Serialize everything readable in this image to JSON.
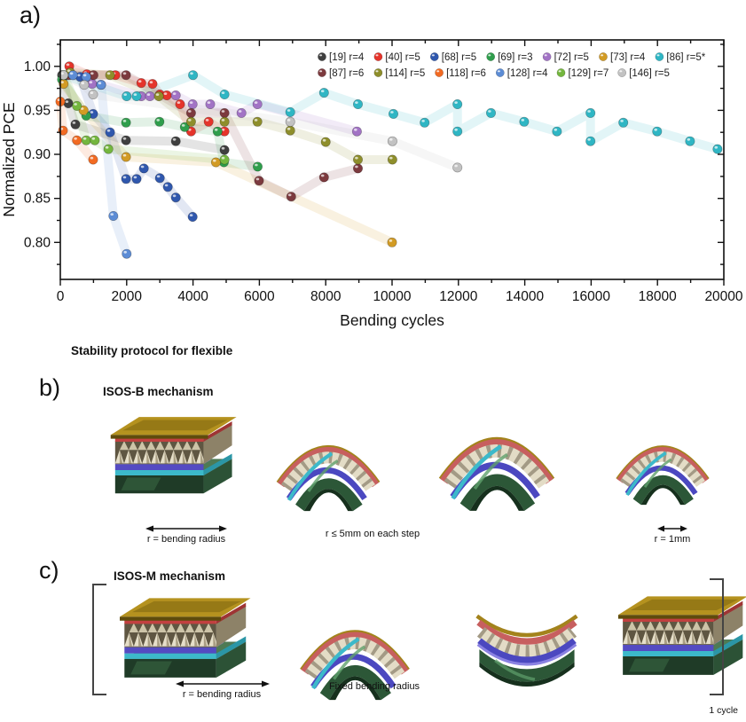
{
  "panel_a": {
    "label": "a)"
  },
  "chart_data": {
    "type": "scatter",
    "title": "",
    "xlabel": "Bending cycles",
    "ylabel": "Normalized PCE",
    "xlim": [
      0,
      20000
    ],
    "ylim": [
      0.758,
      1.03
    ],
    "x_major_ticks": [
      0,
      2000,
      4000,
      6000,
      8000,
      10000,
      12000,
      14000,
      16000,
      18000,
      20000
    ],
    "x_minor_step": 1000,
    "y_major_ticks": [
      0.8,
      0.85,
      0.9,
      0.95,
      1.0
    ],
    "y_minor_step": 0.025,
    "grid": false,
    "legend_position": "top-inside",
    "legend_rows": [
      7,
      6
    ],
    "series": [
      {
        "name": "[19] r=4",
        "color": "#3f3f3f",
        "points": [
          [
            50,
            0.99
          ],
          [
            240,
            0.958
          ],
          [
            455,
            0.934
          ],
          [
            1980,
            0.916
          ],
          [
            3480,
            0.915
          ],
          [
            4950,
            0.905
          ]
        ]
      },
      {
        "name": "[40] r=5",
        "color": "#e5342b",
        "points": [
          [
            270,
            1.0
          ],
          [
            800,
            0.991
          ],
          [
            1660,
            0.99
          ],
          [
            2440,
            0.981
          ],
          [
            2780,
            0.98
          ],
          [
            3000,
            0.968
          ],
          [
            3210,
            0.967
          ],
          [
            3610,
            0.957
          ],
          [
            3940,
            0.926
          ],
          [
            4470,
            0.937
          ],
          [
            4950,
            0.926
          ]
        ]
      },
      {
        "name": "[68] r=5",
        "color": "#2f57ad",
        "points": [
          [
            100,
            0.99
          ],
          [
            600,
            0.988
          ],
          [
            990,
            0.946
          ],
          [
            1500,
            0.925
          ],
          [
            1980,
            0.872
          ],
          [
            2300,
            0.872
          ],
          [
            2520,
            0.884
          ],
          [
            3000,
            0.873
          ],
          [
            3240,
            0.863
          ],
          [
            3480,
            0.851
          ],
          [
            3990,
            0.829
          ]
        ]
      },
      {
        "name": "[69] r=3",
        "color": "#2f9e4c",
        "points": [
          [
            50,
            0.985
          ],
          [
            780,
            0.944
          ],
          [
            1980,
            0.936
          ],
          [
            2990,
            0.937
          ],
          [
            3750,
            0.931
          ],
          [
            4740,
            0.926
          ],
          [
            4930,
            0.891
          ],
          [
            5950,
            0.886
          ]
        ]
      },
      {
        "name": "[72] r=5",
        "color": "#a273c5",
        "points": [
          [
            960,
            0.98
          ],
          [
            1230,
            0.979
          ],
          [
            2440,
            0.966
          ],
          [
            2700,
            0.966
          ],
          [
            3480,
            0.967
          ],
          [
            3990,
            0.957
          ],
          [
            4520,
            0.957
          ],
          [
            5460,
            0.947
          ],
          [
            5940,
            0.957
          ],
          [
            8940,
            0.926
          ]
        ]
      },
      {
        "name": "[73] r=4",
        "color": "#d29b24",
        "points": [
          [
            100,
            0.98
          ],
          [
            700,
            0.95
          ],
          [
            1980,
            0.897
          ],
          [
            4690,
            0.891
          ],
          [
            10000,
            0.8
          ]
        ]
      },
      {
        "name": "[86] r=5*",
        "color": "#2fb6c4",
        "points": [
          [
            100,
            0.99
          ],
          [
            2000,
            0.966
          ],
          [
            2300,
            0.966
          ],
          [
            4000,
            0.99
          ],
          [
            4950,
            0.968
          ],
          [
            6930,
            0.948
          ],
          [
            7950,
            0.97
          ],
          [
            8970,
            0.957
          ],
          [
            10040,
            0.946
          ],
          [
            10980,
            0.936
          ],
          [
            11970,
            0.957
          ],
          [
            11970,
            0.926
          ],
          [
            12980,
            0.947
          ],
          [
            13980,
            0.937
          ],
          [
            14970,
            0.926
          ],
          [
            15980,
            0.947
          ],
          [
            15980,
            0.915
          ],
          [
            16970,
            0.936
          ],
          [
            17990,
            0.926
          ],
          [
            18980,
            0.915
          ],
          [
            19810,
            0.906
          ]
        ]
      },
      {
        "name": "[87] r=6",
        "color": "#7c3a3e",
        "points": [
          [
            250,
            0.99
          ],
          [
            1000,
            0.99
          ],
          [
            1980,
            0.99
          ],
          [
            3940,
            0.947
          ],
          [
            4950,
            0.947
          ],
          [
            5990,
            0.87
          ],
          [
            6960,
            0.852
          ],
          [
            7950,
            0.874
          ],
          [
            8970,
            0.884
          ]
        ]
      },
      {
        "name": "[114] r=5",
        "color": "#8e8e2b",
        "points": [
          [
            300,
            0.993
          ],
          [
            1500,
            0.99
          ],
          [
            2970,
            0.966
          ],
          [
            3940,
            0.937
          ],
          [
            4950,
            0.937
          ],
          [
            5940,
            0.937
          ],
          [
            6930,
            0.927
          ],
          [
            8000,
            0.914
          ],
          [
            8970,
            0.894
          ],
          [
            10010,
            0.894
          ]
        ]
      },
      {
        "name": "[118] r=6",
        "color": "#f26a22",
        "points": [
          [
            0,
            0.96
          ],
          [
            80,
            0.927
          ],
          [
            500,
            0.916
          ],
          [
            990,
            0.894
          ]
        ]
      },
      {
        "name": "[128] r=4",
        "color": "#5c8cd5",
        "points": [
          [
            380,
            0.99
          ],
          [
            780,
            0.988
          ],
          [
            1230,
            0.979
          ],
          [
            1600,
            0.83
          ],
          [
            2000,
            0.787
          ]
        ]
      },
      {
        "name": "[129] r=7",
        "color": "#74b63e",
        "points": [
          [
            100,
            0.99
          ],
          [
            500,
            0.955
          ],
          [
            780,
            0.916
          ],
          [
            1040,
            0.916
          ],
          [
            1450,
            0.906
          ],
          [
            4950,
            0.894
          ]
        ]
      },
      {
        "name": "[146] r=5",
        "color": "#c2c2c2",
        "points": [
          [
            100,
            0.99
          ],
          [
            720,
            0.979
          ],
          [
            990,
            0.968
          ],
          [
            6930,
            0.937
          ],
          [
            10010,
            0.915
          ],
          [
            11970,
            0.885
          ]
        ]
      }
    ]
  },
  "section_title": "Stability protocol for flexible",
  "panel_b": {
    "label": "b)",
    "title": "ISOS-B mechanism",
    "captions": {
      "left": "r = bending radius",
      "middle": "r ≤ 5mm on each step",
      "right": "r = 1mm"
    }
  },
  "panel_c": {
    "label": "c)",
    "title": "ISOS-M mechanism",
    "captions": {
      "left": "r = bending radius",
      "middle": "Fixed bending radius",
      "cycle": "1 cycle"
    }
  }
}
